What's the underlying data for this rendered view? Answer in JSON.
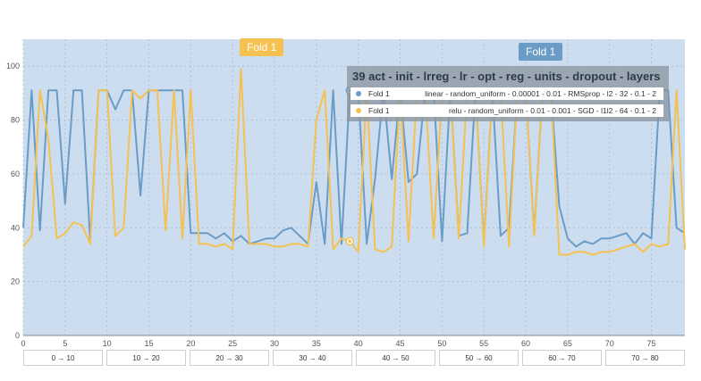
{
  "chart_data": {
    "type": "line",
    "title": "",
    "xlabel": "",
    "ylabel": "",
    "xlim": [
      0,
      79
    ],
    "ylim": [
      0,
      110
    ],
    "xticks": [
      0,
      5,
      10,
      15,
      20,
      25,
      30,
      35,
      40,
      45,
      50,
      55,
      60,
      65,
      70,
      75
    ],
    "yticks": [
      0,
      20,
      40,
      60,
      80,
      100
    ],
    "grid": true,
    "series": [
      {
        "name": "Fold 1",
        "color": "#6a9cc6",
        "x": [
          0,
          1,
          2,
          3,
          4,
          5,
          6,
          7,
          8,
          9,
          10,
          11,
          12,
          13,
          14,
          15,
          16,
          17,
          18,
          19,
          20,
          21,
          22,
          23,
          24,
          25,
          26,
          27,
          28,
          29,
          30,
          31,
          32,
          33,
          34,
          35,
          36,
          37,
          38,
          39,
          40,
          41,
          42,
          43,
          44,
          45,
          46,
          47,
          48,
          49,
          50,
          51,
          52,
          53,
          54,
          55,
          56,
          57,
          58,
          59,
          60,
          61,
          62,
          63,
          64,
          65,
          66,
          67,
          68,
          69,
          70,
          71,
          72,
          73,
          74,
          75,
          76,
          77,
          78,
          79
        ],
        "values": [
          40,
          91,
          39,
          91,
          91,
          49,
          91,
          91,
          35,
          91,
          91,
          84,
          91,
          91,
          52,
          91,
          91,
          91,
          91,
          91,
          38,
          38,
          38,
          36,
          38,
          35,
          37,
          34,
          35,
          36,
          36,
          39,
          40,
          37,
          34,
          57,
          34,
          91,
          34,
          91,
          91,
          34,
          58,
          91,
          58,
          91,
          57,
          60,
          91,
          91,
          35,
          91,
          37,
          38,
          91,
          34,
          91,
          37,
          40,
          91,
          91,
          38,
          91,
          91,
          48,
          36,
          33,
          35,
          34,
          36,
          36,
          37,
          38,
          34,
          38,
          36,
          91,
          91,
          40,
          38
        ]
      },
      {
        "name": "Fold 1",
        "color": "#f5c150",
        "x": [
          0,
          1,
          2,
          3,
          4,
          5,
          6,
          7,
          8,
          9,
          10,
          11,
          12,
          13,
          14,
          15,
          16,
          17,
          18,
          19,
          20,
          21,
          22,
          23,
          24,
          25,
          26,
          27,
          28,
          29,
          30,
          31,
          32,
          33,
          34,
          35,
          36,
          37,
          38,
          39,
          40,
          41,
          42,
          43,
          44,
          45,
          46,
          47,
          48,
          49,
          50,
          51,
          52,
          53,
          54,
          55,
          56,
          57,
          58,
          59,
          60,
          61,
          62,
          63,
          64,
          65,
          66,
          67,
          68,
          69,
          70,
          71,
          72,
          73,
          74,
          75,
          76,
          77,
          78,
          79
        ],
        "values": [
          33,
          37,
          91,
          73,
          36,
          38,
          42,
          41,
          34,
          91,
          91,
          37,
          40,
          91,
          88,
          91,
          91,
          39,
          91,
          36,
          91,
          34,
          34,
          33,
          34,
          32,
          99,
          34,
          34,
          34,
          33,
          33,
          34,
          34,
          33,
          80,
          91,
          32,
          36,
          35,
          31,
          91,
          32,
          31,
          33,
          91,
          35,
          91,
          91,
          36,
          91,
          91,
          36,
          91,
          91,
          33,
          91,
          91,
          33,
          91,
          91,
          37,
          91,
          91,
          30,
          30,
          31,
          31,
          30,
          31,
          31,
          32,
          33,
          34,
          31,
          34,
          33,
          34,
          91,
          32
        ]
      }
    ]
  },
  "badges": {
    "orange_label": "Fold 1",
    "blue_label": "Fold 1"
  },
  "tooltip": {
    "title": "39 act - init - lrreg - lr - opt - reg - units - dropout - layers",
    "rows": [
      {
        "name": "Fold 1",
        "color": "#6a9cc6",
        "value": "linear - random_uniform - 0.00001 - 0.01 - RMSprop - l2 - 32 - 0.1 - 2"
      },
      {
        "name": "Fold 1",
        "color": "#f5c150",
        "value": "relu - random_uniform - 0.01 - 0.001 - SGD - l1l2 - 64 - 0.1 - 2"
      }
    ]
  },
  "range_buttons": [
    "0 → 10",
    "10 → 20",
    "20 → 30",
    "30 → 40",
    "40 → 50",
    "50 → 60",
    "60 → 70",
    "70 → 80"
  ]
}
